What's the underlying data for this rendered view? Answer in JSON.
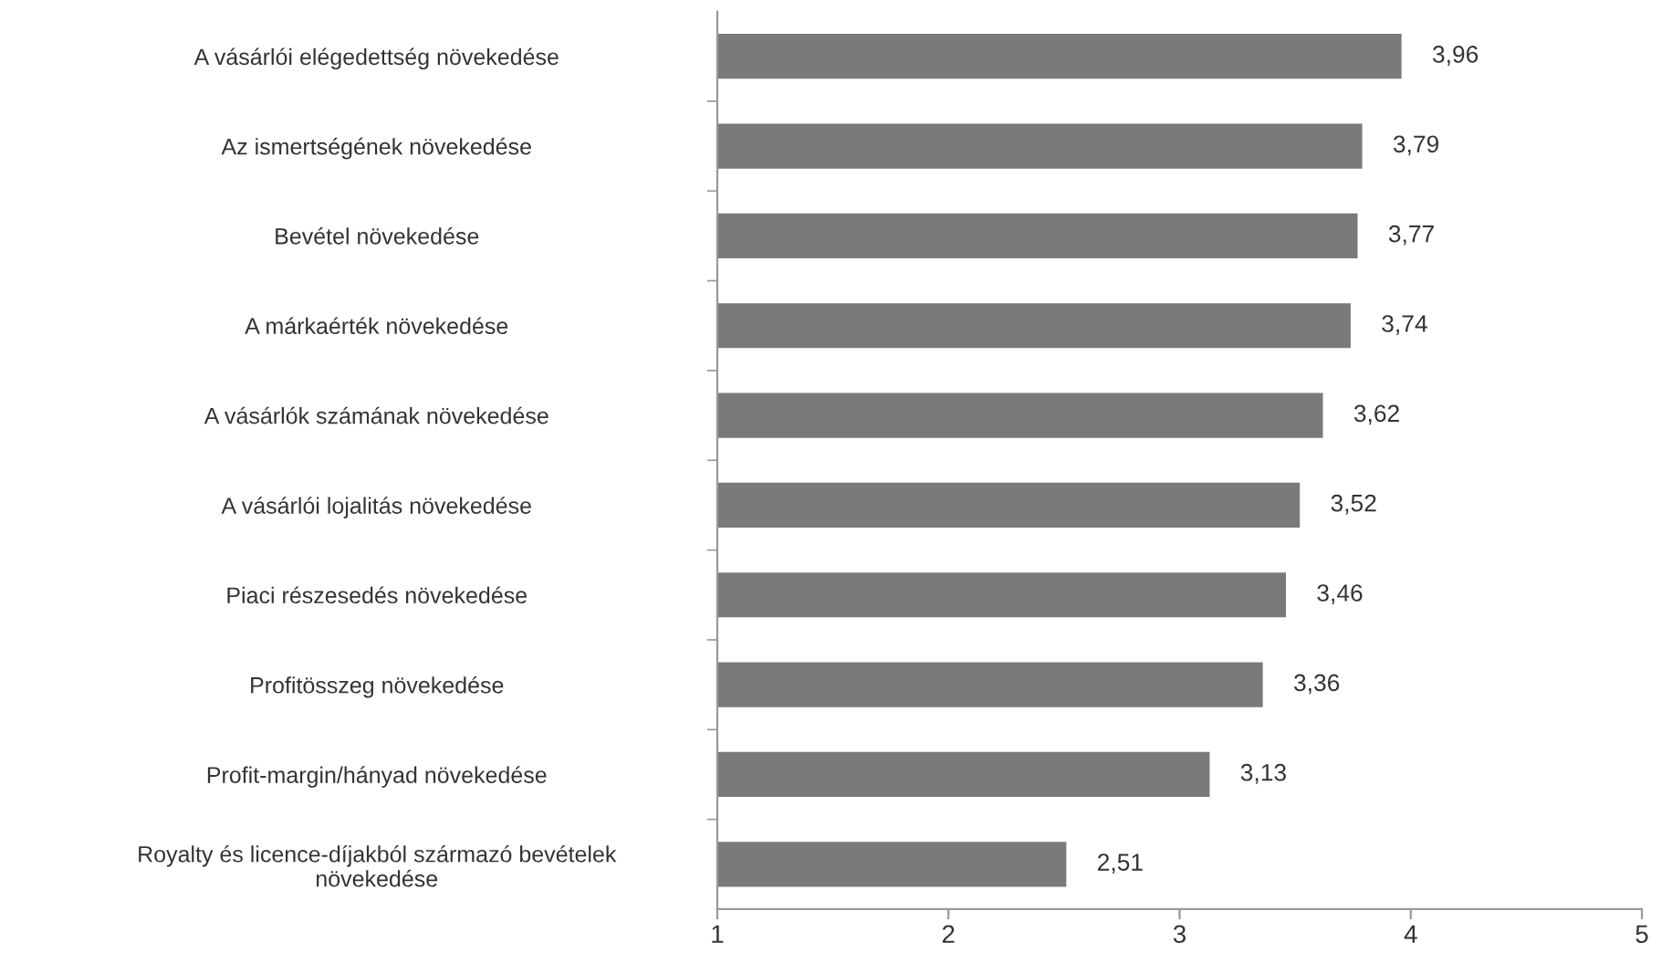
{
  "chart_data": {
    "type": "bar",
    "orientation": "horizontal",
    "categories": [
      "A vásárlói elégedettség növekedése",
      "Az ismertségének növekedése",
      "Bevétel növekedése",
      "A márkaérték növekedése",
      "A vásárlók számának növekedése",
      "A vásárlói lojalitás növekedése",
      "Piaci részesedés növekedése",
      "Profitösszeg növekedése",
      "Profit-margin/hányad növekedése",
      "Royalty és licence-díjakból származó bevételek\nnövekedése"
    ],
    "values": [
      3.96,
      3.79,
      3.77,
      3.74,
      3.62,
      3.52,
      3.46,
      3.36,
      3.13,
      2.51
    ],
    "value_labels": [
      "3,96",
      "3,79",
      "3,77",
      "3,74",
      "3,62",
      "3,52",
      "3,46",
      "3,36",
      "3,13",
      "2,51"
    ],
    "color": "#7a7a7a",
    "xlim": [
      1,
      5
    ],
    "xticks": [
      1,
      2,
      3,
      4,
      5
    ],
    "grid": false,
    "legend": false
  }
}
